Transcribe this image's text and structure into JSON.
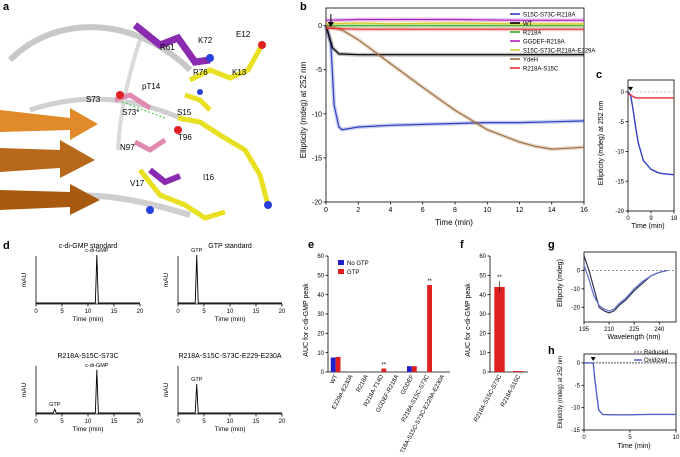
{
  "panels": {
    "a": {
      "label": "a",
      "residue_labels": [
        "R61",
        "K72",
        "E12",
        "R76",
        "K13",
        "pT14",
        "S73",
        "S73*",
        "S15",
        "T96",
        "N97",
        "I16",
        "V17"
      ]
    },
    "b": {
      "label": "b",
      "xlabel": "Time (min)",
      "ylabel": "Ellipticity (mdeg) at 252 nm",
      "xticks": [
        "0",
        "2",
        "4",
        "6",
        "8",
        "10",
        "12",
        "14",
        "16"
      ],
      "yticks": [
        "0",
        "-5",
        "-10",
        "-15",
        "-20"
      ]
    },
    "c": {
      "label": "c",
      "xlabel": "Time (min)",
      "ylabel": "Ellipticity (mdeg) at 252 nm",
      "xticks": [
        "0",
        "9",
        "18"
      ],
      "yticks": [
        "0",
        "-5",
        "-10",
        "-15",
        "-20"
      ]
    },
    "d": {
      "label": "d",
      "subplots": [
        {
          "title": "c-di-GMP standard",
          "peak_label": "c-di-GMP"
        },
        {
          "title": "GTP standard",
          "peak_label": "GTP"
        },
        {
          "title": "R218A-S15C-S73C",
          "peak_label": "c-di-GMP",
          "minor_label": "GTP"
        },
        {
          "title": "R218A-S15C-S73C-E229-E230A",
          "peak_label": "GTP"
        }
      ],
      "ylabel": "mAU",
      "xlabel": "Time (min)",
      "xticks": [
        "0",
        "5",
        "10",
        "15",
        "20"
      ]
    },
    "e": {
      "label": "e",
      "ylabel": "AUC for c-di-GMP peak",
      "legend": [
        "No GTP",
        "GTP"
      ],
      "yticks": [
        "0",
        "10",
        "20",
        "30",
        "40",
        "50",
        "60"
      ],
      "annotations": [
        "**",
        "**"
      ]
    },
    "f": {
      "label": "f",
      "ylabel": "AUC for c-di-GMP peak",
      "yticks": [
        "0",
        "10",
        "20",
        "30",
        "40",
        "50",
        "60"
      ],
      "annotations": [
        "**"
      ]
    },
    "g": {
      "label": "g",
      "xlabel": "Wavelength (nm)",
      "ylabel": "Ellipcity (mdeg)",
      "xticks": [
        "195",
        "210",
        "225",
        "240"
      ],
      "yticks": [
        "0",
        "-10",
        "-20"
      ]
    },
    "h": {
      "label": "h",
      "xlabel": "Time (min)",
      "ylabel": "Ellipticity (mdeg) at 252 nm",
      "xticks": [
        "0",
        "5",
        "10"
      ],
      "yticks": [
        "0",
        "-5",
        "-10",
        "-15"
      ],
      "legend": [
        "Reduced",
        "Oxidized"
      ]
    }
  },
  "chart_data": [
    {
      "panel": "b",
      "type": "line",
      "xlabel": "Time (min)",
      "ylabel": "Ellipticity (mdeg) at 252 nm",
      "xlim": [
        0,
        16
      ],
      "ylim": [
        -20,
        2
      ],
      "series": [
        {
          "name": "S15C-S73C-R218A",
          "color": "#3040c0",
          "x": [
            0,
            0.3,
            0.5,
            0.8,
            1,
            2,
            4,
            6,
            8,
            10,
            12,
            14,
            16
          ],
          "y": [
            0,
            -2,
            -9,
            -11.5,
            -11.8,
            -11.5,
            -11.3,
            -11.2,
            -11.1,
            -11.0,
            -11.0,
            -10.9,
            -10.8
          ]
        },
        {
          "name": "WT",
          "color": "#000000",
          "x": [
            0,
            0.4,
            0.8,
            2,
            4,
            8,
            12,
            16
          ],
          "y": [
            0,
            -2.5,
            -3.2,
            -3.3,
            -3.3,
            -3.3,
            -3.3,
            -3.3
          ]
        },
        {
          "name": "R218A",
          "color": "#30b030",
          "x": [
            0,
            2,
            4,
            8,
            12,
            16
          ],
          "y": [
            0,
            0,
            0,
            0,
            0,
            0
          ]
        },
        {
          "name": "GGDEF-R218A",
          "color": "#b020c0",
          "x": [
            0,
            2,
            4,
            8,
            12,
            16
          ],
          "y": [
            0.6,
            0.7,
            0.7,
            0.7,
            0.6,
            0.6
          ]
        },
        {
          "name": "S15C-S73C-R218A-E229A-E230A",
          "color": "#d8c830",
          "x": [
            0,
            2,
            4,
            8,
            12,
            16
          ],
          "y": [
            0.2,
            0.3,
            0.2,
            0.3,
            0.2,
            0.2
          ]
        },
        {
          "name": "YdeH",
          "color": "#a07040",
          "x": [
            0,
            1,
            2,
            4,
            6,
            8,
            10,
            12,
            13,
            14,
            15,
            16
          ],
          "y": [
            0,
            -0.5,
            -1.6,
            -4.3,
            -7.0,
            -9.6,
            -11.8,
            -13.2,
            -13.7,
            -14.0,
            -13.9,
            -13.8
          ]
        },
        {
          "name": "R218A-S15C",
          "color": "#e03030",
          "x": [
            0,
            2,
            4,
            8,
            12,
            16
          ],
          "y": [
            -0.3,
            -0.4,
            -0.4,
            -0.4,
            -0.4,
            -0.4
          ]
        }
      ]
    },
    {
      "panel": "c",
      "type": "line",
      "xlabel": "Time (min)",
      "ylabel": "Ellipticity (mdeg) at 252 nm",
      "xlim": [
        0,
        18
      ],
      "ylim": [
        -20,
        2
      ],
      "series": [
        {
          "name": "blue",
          "color": "#3040c0",
          "x": [
            0,
            1,
            2,
            3,
            4,
            6,
            9,
            12,
            15,
            18
          ],
          "y": [
            0,
            -0.5,
            -3,
            -6,
            -8.5,
            -11.5,
            -13,
            -13.6,
            -13.8,
            -13.9
          ]
        },
        {
          "name": "red",
          "color": "#e03030",
          "x": [
            0,
            3,
            6,
            9,
            12,
            15,
            18
          ],
          "y": [
            -0.3,
            -1.0,
            -1.0,
            -1.0,
            -1.0,
            -1.0,
            -1.0
          ]
        }
      ]
    },
    {
      "panel": "d",
      "type": "line",
      "xlabel": "Time (min)",
      "ylabel": "mAU",
      "xlim": [
        0,
        20
      ],
      "subplots": [
        {
          "title": "c-di-GMP standard",
          "peaks": [
            {
              "x": 11.7,
              "height": 1.0,
              "label": "c-di-GMP"
            }
          ]
        },
        {
          "title": "GTP standard",
          "peaks": [
            {
              "x": 3.6,
              "height": 1.0,
              "label": "GTP"
            }
          ]
        },
        {
          "title": "R218A-S15C-S73C",
          "peaks": [
            {
              "x": 3.6,
              "height": 0.08,
              "label": "GTP"
            },
            {
              "x": 11.7,
              "height": 0.9,
              "label": "c-di-GMP"
            }
          ]
        },
        {
          "title": "R218A-S15C-S73C-E229-E230A",
          "peaks": [
            {
              "x": 3.6,
              "height": 0.6,
              "label": "GTP"
            }
          ]
        }
      ]
    },
    {
      "panel": "e",
      "type": "bar",
      "ylabel": "AUC for c-di-GMP peak",
      "ylim": [
        0,
        60
      ],
      "categories": [
        "WT",
        "E229A-E230A",
        "R218A",
        "R218A-T14D",
        "GGDEF-R218A",
        "GGDEF",
        "R218A-S15C-S73C",
        "R218A-S15C-S73C-E229A-E230A"
      ],
      "series": [
        {
          "name": "No GTP",
          "color": "#2020d0",
          "values": [
            7.5,
            0,
            0,
            0,
            0,
            3,
            0,
            0
          ]
        },
        {
          "name": "GTP",
          "color": "#e02020",
          "values": [
            7.8,
            0,
            0,
            1.8,
            0,
            3,
            45,
            0
          ]
        }
      ]
    },
    {
      "panel": "f",
      "type": "bar",
      "ylabel": "AUC for c-di-GMP peak",
      "ylim": [
        0,
        60
      ],
      "categories": [
        "R218A-S15C-S73C",
        "R218A-S15C"
      ],
      "values": [
        44,
        0.5
      ]
    },
    {
      "panel": "g",
      "type": "line",
      "xlabel": "Wavelength (nm)",
      "ylabel": "Ellipcity (mdeg)",
      "xlim": [
        195,
        250
      ],
      "ylim": [
        -28,
        10
      ],
      "series": [
        {
          "name": "dark",
          "color": "#303050",
          "x": [
            195,
            198,
            201,
            204,
            207,
            210,
            213,
            216,
            220,
            225,
            230,
            235,
            240,
            245
          ],
          "y": [
            8,
            0,
            -10,
            -20,
            -22,
            -23,
            -22,
            -19,
            -16,
            -11,
            -7,
            -3,
            -1,
            0
          ]
        },
        {
          "name": "light",
          "color": "#6070d0",
          "x": [
            195,
            198,
            201,
            204,
            207,
            210,
            213,
            216,
            220,
            225,
            230,
            235,
            240,
            245
          ],
          "y": [
            3,
            -5,
            -14,
            -19,
            -21,
            -22,
            -21,
            -18,
            -15,
            -10,
            -6,
            -3,
            -1,
            0
          ]
        }
      ]
    },
    {
      "panel": "h",
      "type": "line",
      "xlabel": "Time (min)",
      "ylabel": "Ellipticity (mdeg) at 252 nm",
      "xlim": [
        0,
        10
      ],
      "ylim": [
        -15,
        2
      ],
      "series": [
        {
          "name": "Reduced",
          "color": "#555555",
          "x": [
            0,
            2,
            4,
            6,
            8,
            10
          ],
          "y": [
            0,
            0,
            0,
            0,
            0,
            0
          ]
        },
        {
          "name": "Oxidized",
          "color": "#5060c8",
          "x": [
            0,
            1,
            1.2,
            1.6,
            2,
            3,
            5,
            7,
            10
          ],
          "y": [
            0,
            0,
            -4,
            -10.5,
            -11.5,
            -11.6,
            -11.6,
            -11.5,
            -11.5
          ]
        }
      ]
    }
  ]
}
